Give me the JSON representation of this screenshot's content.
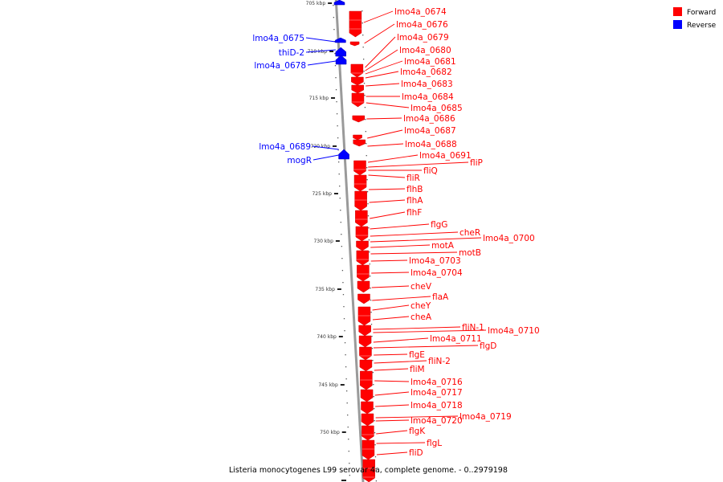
{
  "caption": "Listeria monocytogenes L99 serovar 4a, complete genome. - 0..2979198",
  "legend": [
    {
      "label": "Forward",
      "color": "#ff0000"
    },
    {
      "label": "Reverse",
      "color": "#0000ff"
    }
  ],
  "scale_ticks": [
    "705 kbp",
    "710 kbp",
    "715 kbp",
    "720 kbp",
    "725 kbp",
    "730 kbp",
    "735 kbp",
    "740 kbp",
    "745 kbp",
    "750 kbp"
  ],
  "forward_genes": [
    "lmo4a_0674",
    "lmo4a_0676",
    "lmo4a_0679",
    "lmo4a_0680",
    "lmo4a_0681",
    "lmo4a_0682",
    "lmo4a_0683",
    "lmo4a_0684",
    "lmo4a_0685",
    "lmo4a_0686",
    "lmo4a_0687",
    "lmo4a_0688",
    "lmo4a_0691",
    "fliP",
    "fliQ",
    "fliR",
    "flhB",
    "flhA",
    "flhF",
    "flgG",
    "cheR",
    "lmo4a_0700",
    "motA",
    "motB",
    "lmo4a_0703",
    "lmo4a_0704",
    "cheV",
    "flaA",
    "cheY",
    "cheA",
    "fliN-1",
    "lmo4a_0710",
    "lmo4a_0711",
    "flgD",
    "flgE",
    "fliN-2",
    "fliM",
    "lmo4a_0716",
    "lmo4a_0717",
    "lmo4a_0718",
    "lmo4a_0719",
    "lmo4a_0720",
    "flgK",
    "flgL",
    "fliD"
  ],
  "reverse_genes": [
    "lmo4a_0675",
    "thiD-2",
    "lmo4a_0678",
    "lmo4a_0689",
    "mogR"
  ]
}
